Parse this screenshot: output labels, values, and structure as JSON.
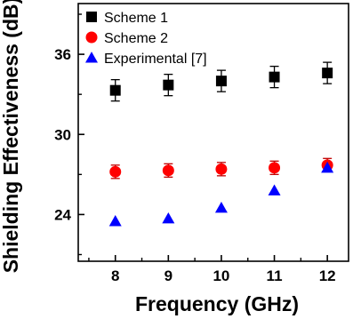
{
  "chart_data": {
    "type": "scatter",
    "xlabel": "Frequency (GHz)",
    "ylabel": "Shielding Effectiveness (dB)",
    "x": [
      8,
      9,
      10,
      11,
      12
    ],
    "x_ticks": [
      "8",
      "9",
      "10",
      "11",
      "12"
    ],
    "y_ticks": [
      "24",
      "30",
      "36"
    ],
    "y_tick_values": [
      24,
      30,
      36
    ],
    "xlim": [
      7.3,
      12.4
    ],
    "ylim": [
      20.5,
      39.8
    ],
    "legend_position": "top-left",
    "grid": false,
    "series": [
      {
        "name": "Scheme 1",
        "marker": "square",
        "color": "#000000",
        "values": [
          33.3,
          33.7,
          34.0,
          34.3,
          34.6
        ],
        "error": [
          0.8,
          0.8,
          0.8,
          0.8,
          0.8
        ]
      },
      {
        "name": "Scheme 2",
        "marker": "circle",
        "color": "#ff0000",
        "values": [
          27.2,
          27.3,
          27.4,
          27.5,
          27.7
        ],
        "error": [
          0.5,
          0.5,
          0.5,
          0.5,
          0.5
        ]
      },
      {
        "name": "Experimental [7]",
        "marker": "triangle",
        "color": "#0000ff",
        "values": [
          23.5,
          23.7,
          24.5,
          25.8,
          27.5
        ],
        "error": []
      }
    ]
  }
}
